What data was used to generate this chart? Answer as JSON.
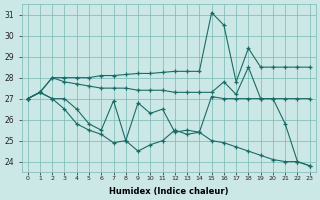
{
  "xlabel": "Humidex (Indice chaleur)",
  "bg_color": "#cce8e6",
  "grid_color": "#7ab8b4",
  "line_color": "#1a6b65",
  "xlim": [
    -0.5,
    23.5
  ],
  "ylim": [
    23.5,
    31.5
  ],
  "yticks": [
    24,
    25,
    26,
    27,
    28,
    29,
    30,
    31
  ],
  "xticks": [
    0,
    1,
    2,
    3,
    4,
    5,
    6,
    7,
    8,
    9,
    10,
    11,
    12,
    13,
    14,
    15,
    16,
    17,
    18,
    19,
    20,
    21,
    22,
    23
  ],
  "line1_x": [
    0,
    1,
    2,
    3,
    4,
    5,
    6,
    7,
    8,
    9,
    10,
    11,
    12,
    13,
    14,
    15,
    16,
    17,
    18,
    19,
    20,
    21,
    22,
    23
  ],
  "line1_y": [
    27.0,
    27.3,
    28.0,
    28.0,
    28.0,
    28.0,
    28.1,
    28.1,
    28.15,
    28.2,
    28.2,
    28.25,
    28.3,
    28.3,
    28.3,
    31.1,
    30.5,
    27.8,
    29.4,
    28.5,
    28.5,
    28.5,
    28.5,
    28.5
  ],
  "line2_x": [
    0,
    1,
    2,
    3,
    4,
    5,
    6,
    7,
    8,
    9,
    10,
    11,
    12,
    13,
    14,
    15,
    16,
    17,
    18,
    19,
    20,
    21,
    22,
    23
  ],
  "line2_y": [
    27.0,
    27.3,
    28.0,
    27.8,
    27.7,
    27.6,
    27.5,
    27.5,
    27.5,
    27.4,
    27.4,
    27.4,
    27.3,
    27.3,
    27.3,
    27.3,
    27.8,
    27.2,
    28.5,
    27.0,
    27.0,
    27.0,
    27.0,
    27.0
  ],
  "line3_x": [
    0,
    1,
    2,
    3,
    4,
    5,
    6,
    7,
    8,
    9,
    10,
    11,
    12,
    13,
    14,
    15,
    16,
    17,
    18,
    19,
    20,
    21,
    22,
    23
  ],
  "line3_y": [
    27.0,
    27.3,
    27.0,
    27.0,
    26.5,
    25.8,
    25.5,
    26.9,
    25.0,
    26.8,
    26.3,
    26.5,
    25.4,
    25.5,
    25.4,
    27.1,
    27.0,
    27.0,
    27.0,
    27.0,
    27.0,
    25.8,
    24.0,
    23.8
  ],
  "line4_x": [
    0,
    1,
    2,
    3,
    4,
    5,
    6,
    7,
    8,
    9,
    10,
    11,
    12,
    13,
    14,
    15,
    16,
    17,
    18,
    19,
    20,
    21,
    22,
    23
  ],
  "line4_y": [
    27.0,
    27.3,
    27.0,
    26.5,
    25.8,
    25.5,
    25.3,
    24.9,
    25.0,
    24.5,
    24.8,
    25.0,
    25.5,
    25.3,
    25.4,
    25.0,
    24.9,
    24.7,
    24.5,
    24.3,
    24.1,
    24.0,
    24.0,
    23.8
  ]
}
